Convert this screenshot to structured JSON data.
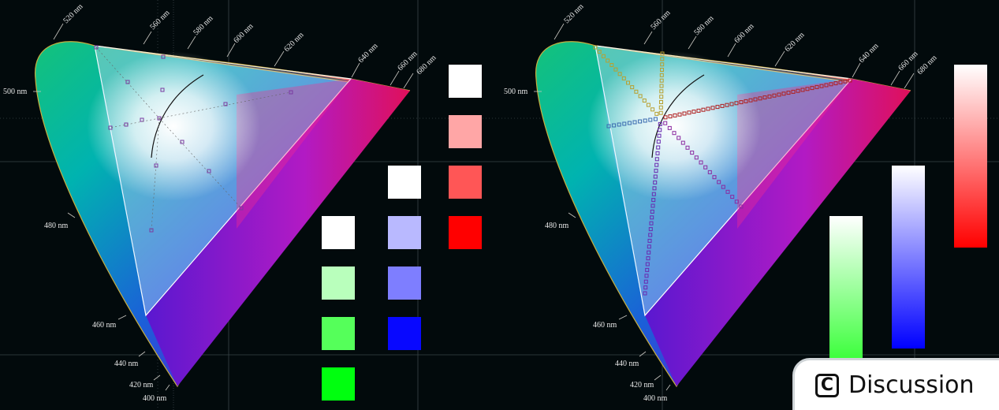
{
  "panels": [
    {
      "wavelength_labels": [
        "520 nm",
        "560 nm",
        "580 nm",
        "600 nm",
        "620 nm",
        "640 nm",
        "660 nm",
        "680 nm",
        "500 nm",
        "480 nm",
        "460 nm",
        "440 nm",
        "420 nm",
        "400 nm"
      ]
    },
    {
      "wavelength_labels": [
        "520 nm",
        "560 nm",
        "580 nm",
        "600 nm",
        "620 nm",
        "640 nm",
        "660 nm",
        "680 nm",
        "500 nm",
        "480 nm",
        "460 nm",
        "440 nm",
        "420 nm",
        "400 nm"
      ]
    }
  ],
  "swatches": {
    "green": [
      "#ffffff",
      "#b9ffbc",
      "#55ff5a",
      "#00ff0f"
    ],
    "blue": [
      "#ffffff",
      "#b9b9ff",
      "#7e7eff",
      "#0808ff"
    ],
    "red": [
      "#ffffff",
      "#ffa6a6",
      "#ff5656",
      "#ff0000"
    ]
  },
  "gradient_bars": {
    "green": "#33ff33",
    "blue": "#0000ff",
    "red": "#ff0000"
  },
  "discussion_button": {
    "label": "Discussion",
    "icon": "c-logo-icon",
    "icon_glyph": "C"
  }
}
